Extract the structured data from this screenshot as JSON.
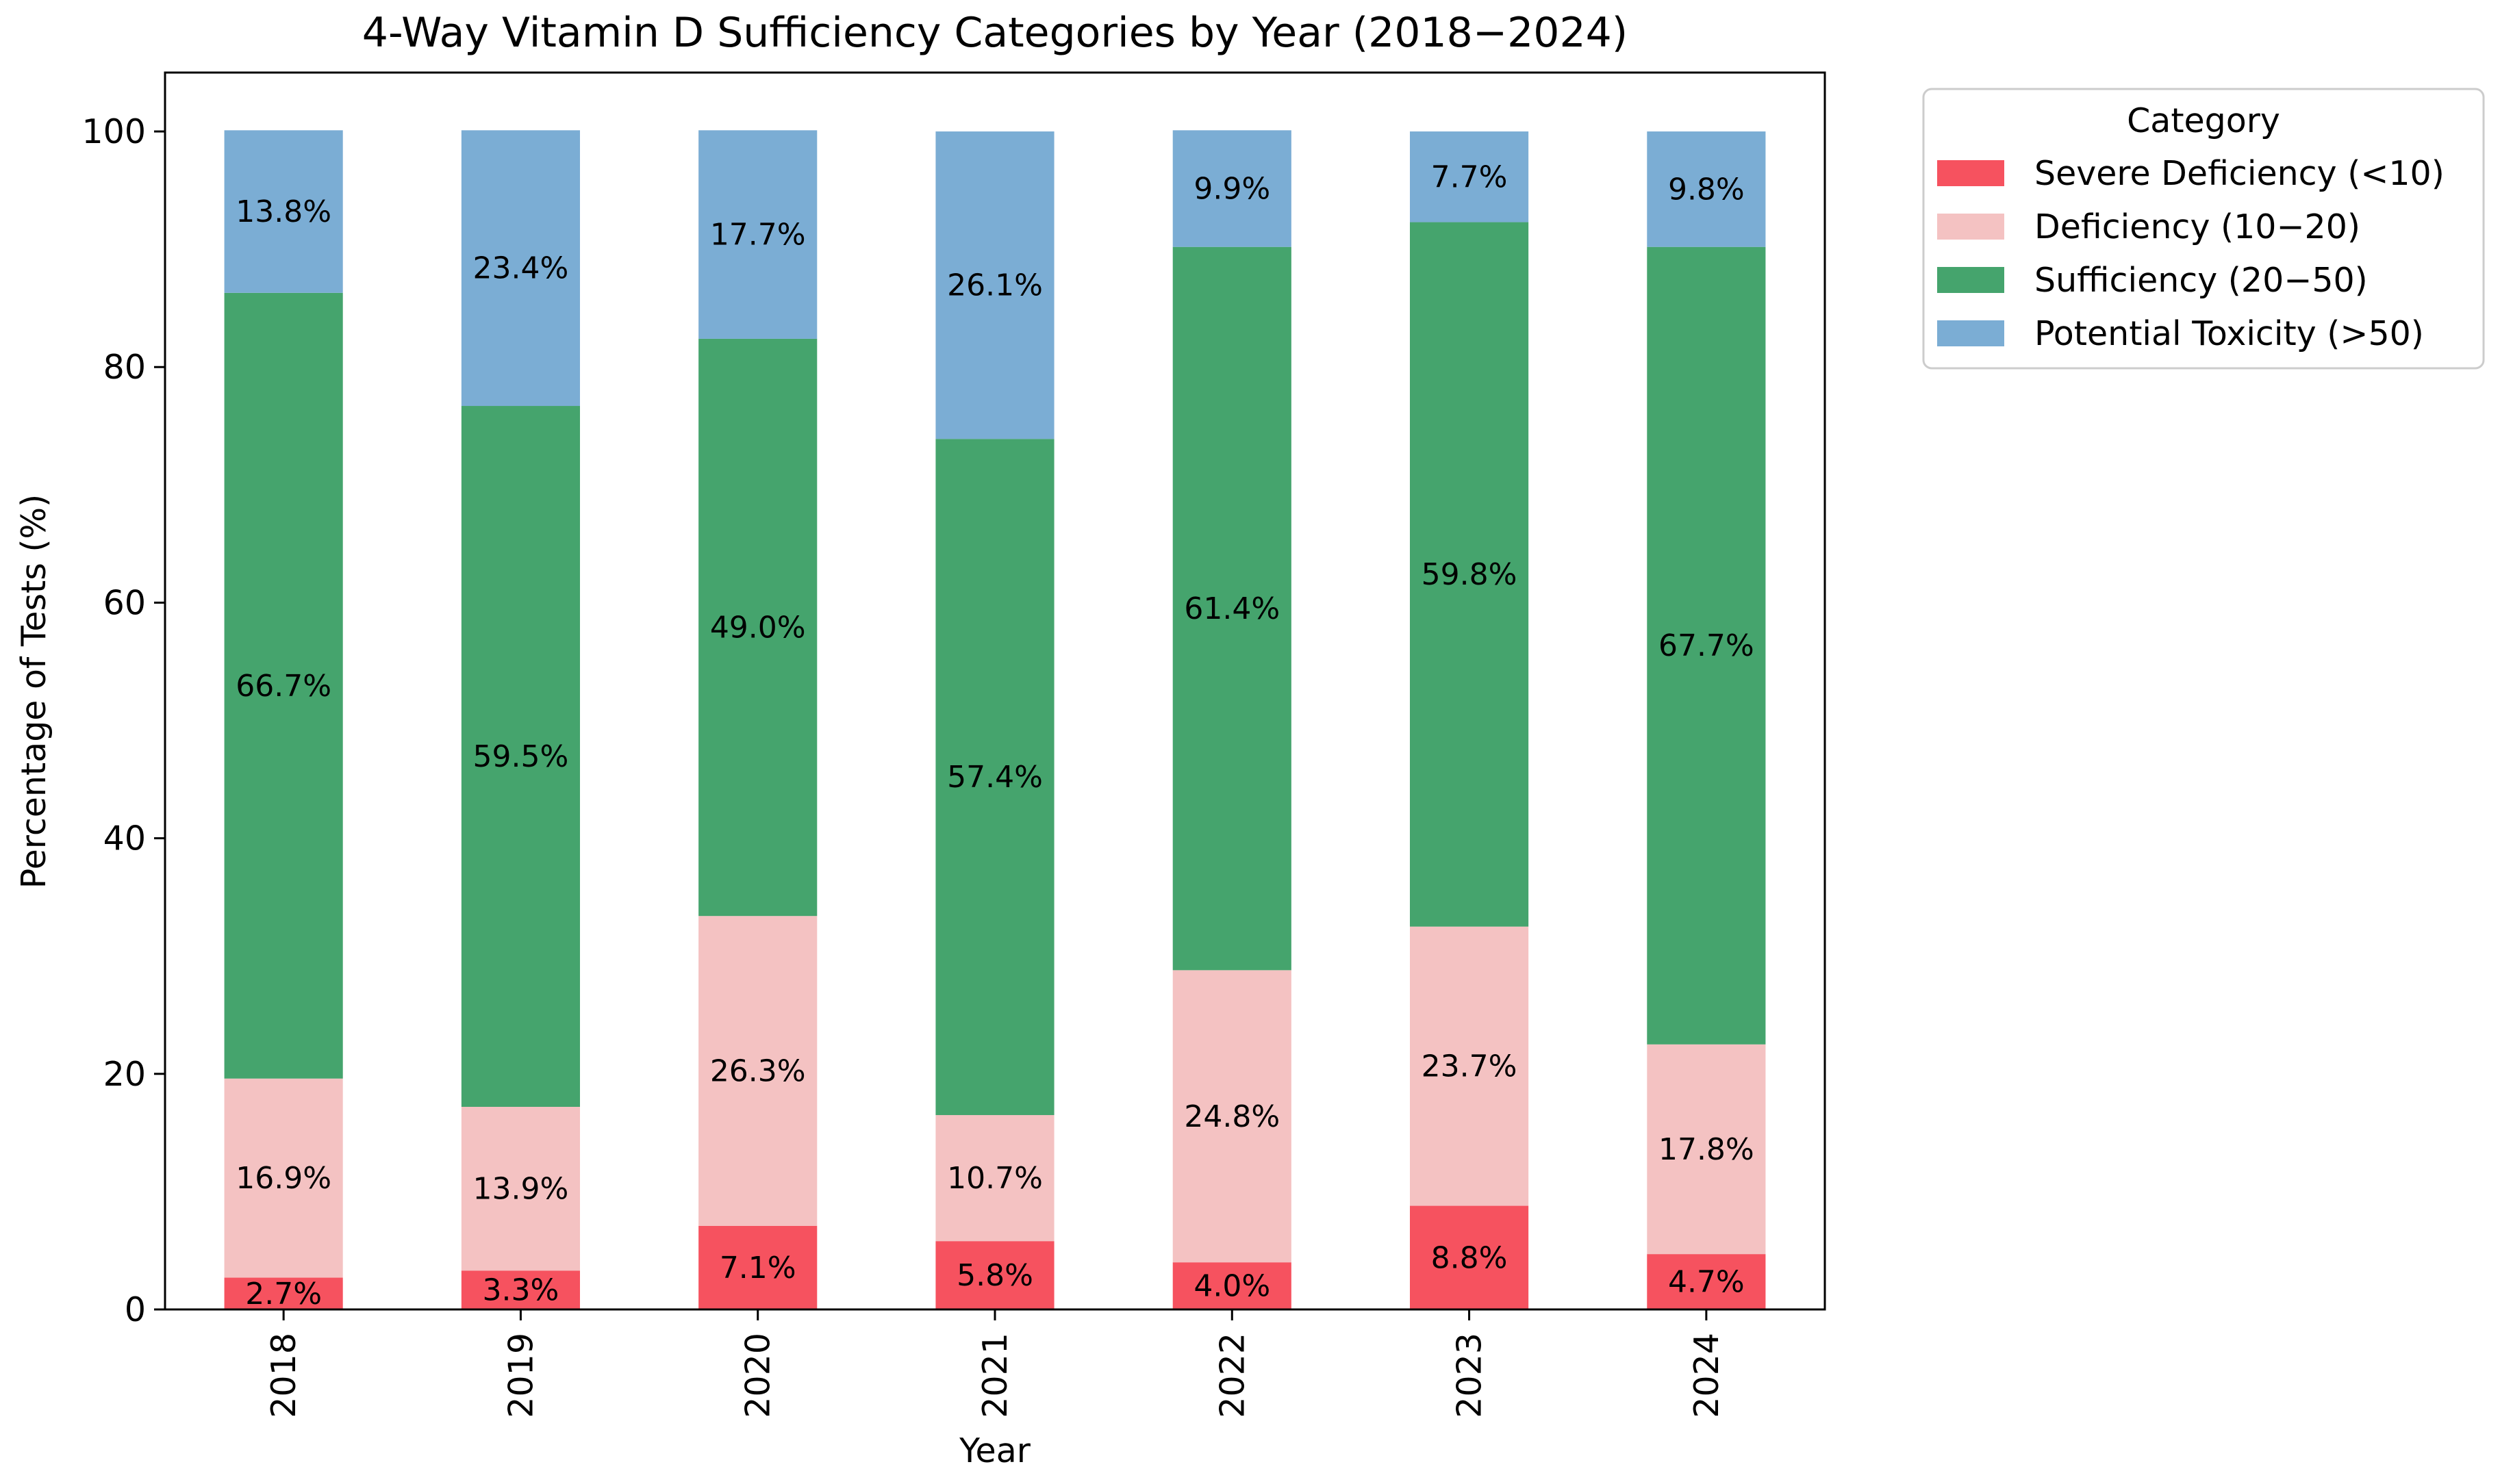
{
  "chart_data": {
    "type": "bar",
    "stacked": true,
    "title": "4-Way Vitamin D Sufficiency Categories by Year (2018−2024)",
    "xlabel": "Year",
    "ylabel": "Percentage of Tests (%)",
    "ylim": [
      0,
      105
    ],
    "yticks": [
      0,
      20,
      40,
      60,
      80,
      100
    ],
    "grid": false,
    "categories": [
      "2018",
      "2019",
      "2020",
      "2021",
      "2022",
      "2023",
      "2024"
    ],
    "series": [
      {
        "name": "Severe Deficiency (<10)",
        "color": "#f6525f",
        "values": [
          2.7,
          3.3,
          7.1,
          5.8,
          4.0,
          8.8,
          4.7
        ],
        "labels": [
          "2.7%",
          "3.3%",
          "7.1%",
          "5.8%",
          "4.0%",
          "8.8%",
          "4.7%"
        ]
      },
      {
        "name": "Deficiency (10−20)",
        "color": "#f4c2c2",
        "values": [
          16.9,
          13.9,
          26.3,
          10.7,
          24.8,
          23.7,
          17.8
        ],
        "labels": [
          "16.9%",
          "13.9%",
          "26.3%",
          "10.7%",
          "24.8%",
          "23.7%",
          "17.8%"
        ]
      },
      {
        "name": "Sufficiency (20−50)",
        "color": "#45a46d",
        "values": [
          66.7,
          59.5,
          49.0,
          57.4,
          61.4,
          59.8,
          67.7
        ],
        "labels": [
          "66.7%",
          "59.5%",
          "49.0%",
          "57.4%",
          "61.4%",
          "59.8%",
          "67.7%"
        ]
      },
      {
        "name": "Potential Toxicity (>50)",
        "color": "#7badd4",
        "values": [
          13.8,
          23.4,
          17.7,
          26.1,
          9.9,
          7.7,
          9.8
        ],
        "labels": [
          "13.8%",
          "23.4%",
          "17.7%",
          "26.1%",
          "9.9%",
          "7.7%",
          "9.8%"
        ]
      }
    ],
    "legend": {
      "title": "Category",
      "position": "outside-right-top"
    }
  }
}
